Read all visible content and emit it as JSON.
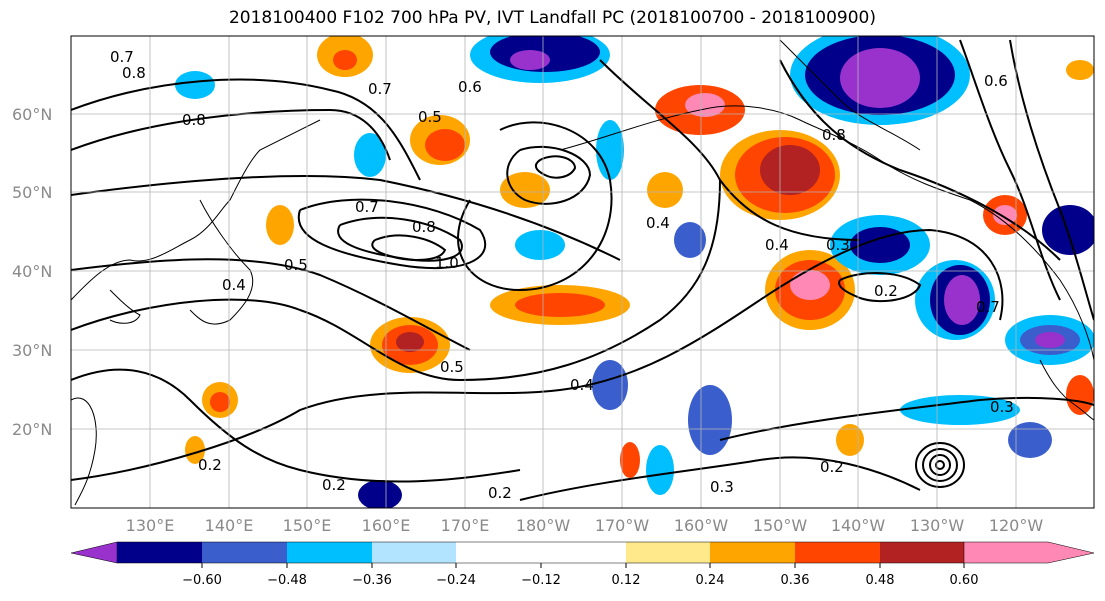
{
  "title": "2018100400 F102 700 hPa PV, IVT Landfall PC (2018100700 - 2018100900)",
  "latitude_labels": [
    "60°N",
    "50°N",
    "40°N",
    "30°N",
    "20°N"
  ],
  "longitude_labels": [
    "130°E",
    "140°E",
    "150°E",
    "160°E",
    "170°E",
    "180°W",
    "170°W",
    "160°W",
    "150°W",
    "140°W",
    "130°W",
    "120°W"
  ],
  "colorbar": {
    "tick_labels": [
      "−0.60",
      "−0.48",
      "−0.36",
      "−0.24",
      "−0.12",
      "0.12",
      "0.24",
      "0.36",
      "0.48",
      "0.60"
    ],
    "colors": [
      "#9932cc",
      "#00008b",
      "#3a5fcd",
      "#00bfff",
      "#b2e4ff",
      "#ffffff",
      "#ffe98a",
      "#ffa500",
      "#ff4500",
      "#b22222",
      "#ff89b4"
    ]
  },
  "contour_labels": [
    "0.7",
    "0.8",
    "0.8",
    "0.6",
    "0.7",
    "0.5",
    "0.8",
    "0.7",
    "1.0",
    "0.5",
    "0.4",
    "0.4",
    "0.3",
    "0.2",
    "0.2",
    "0.3",
    "0.4",
    "0.2",
    "0.5",
    "0.3",
    "0.2",
    "0.2",
    "0.7",
    "0.6",
    "0.8",
    "0.4"
  ],
  "icons": [
    "coastline-outline",
    "graticule-grid"
  ]
}
